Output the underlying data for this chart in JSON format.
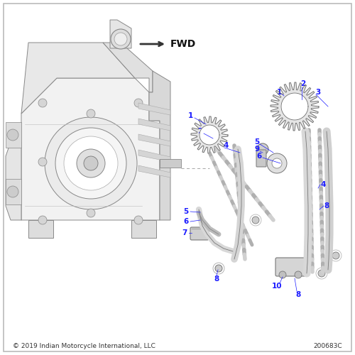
{
  "background_color": "#ffffff",
  "border_color": "#bbbbbb",
  "label_color": "#1a1aff",
  "text_color": "#333333",
  "arrow_color": "#444444",
  "line_color": "#888888",
  "fwd_text": "FWD",
  "copyright_text": "© 2019 Indian Motorcycle International, LLC",
  "part_number": "200683C",
  "figsize": [
    5.0,
    5.0
  ],
  "dpi": 100
}
